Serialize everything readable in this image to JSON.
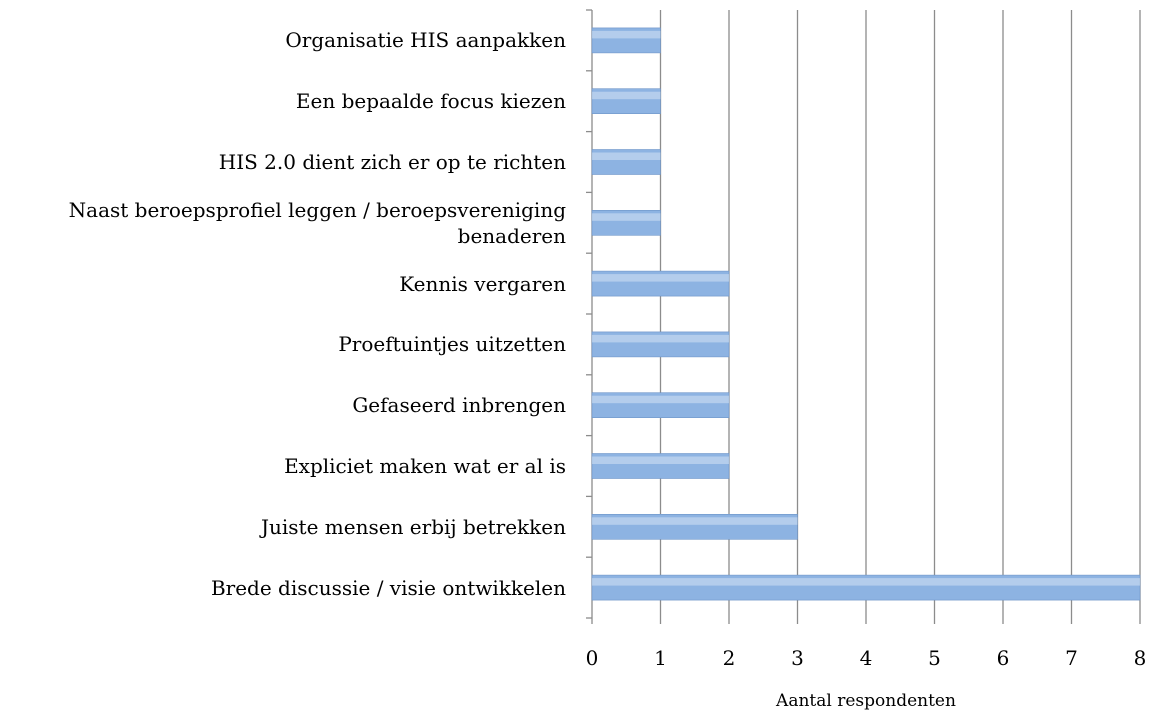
{
  "chart_data": {
    "type": "barh",
    "categories": [
      "Organisatie HIS aanpakken",
      "Een bepaalde focus kiezen",
      "HIS 2.0 dient zich er op te richten",
      "Naast beroepsprofiel leggen / beroepsvereniging benaderen",
      "Kennis vergaren",
      "Proeftuintjes uitzetten",
      "Gefaseerd inbrengen",
      "Expliciet maken wat er al is",
      "Juiste mensen erbij betrekken",
      "Brede discussie / visie ontwikkelen"
    ],
    "values": [
      1,
      1,
      1,
      1,
      2,
      2,
      2,
      2,
      3,
      8
    ],
    "color": "#8db3e2",
    "xlabel": "Aantal respondenten",
    "xlim": [
      0,
      8
    ],
    "xticks": [
      0,
      1,
      2,
      3,
      4,
      5,
      6,
      7,
      8
    ],
    "grid": true
  }
}
